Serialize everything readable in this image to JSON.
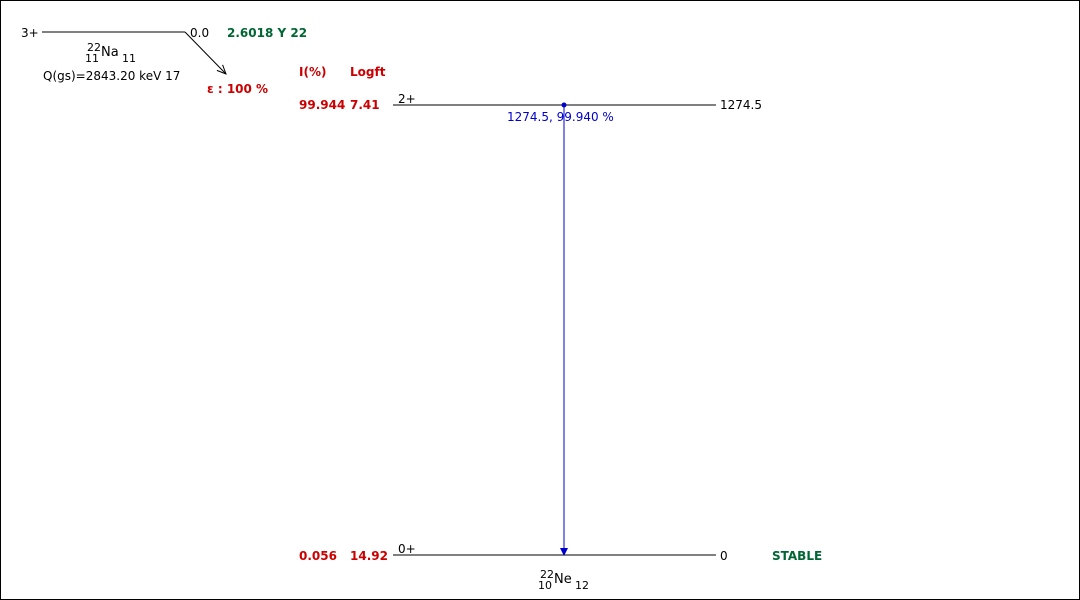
{
  "parent": {
    "spin": "3+",
    "energy": "0.0",
    "halflife": "2.6018 Y 22",
    "nuclide": {
      "mass": "22",
      "atomic": "11",
      "symbol": "Na",
      "neutrons": "11"
    },
    "qvalue": "Q(gs)=2843.20 keV 17",
    "decay_mode": "ε : 100 %"
  },
  "column_headers": {
    "intensity": "I(%)",
    "logft": "Logft"
  },
  "levels": [
    {
      "spin": "2+",
      "energy": "1274.5",
      "intensity": "99.944",
      "logft": "7.41"
    },
    {
      "spin": "0+",
      "energy": "0",
      "intensity": "0.056",
      "logft": "14.92",
      "status": "STABLE"
    }
  ],
  "gamma": {
    "label": "1274.5, 99.940 %"
  },
  "daughter": {
    "mass": "22",
    "atomic": "10",
    "symbol": "Ne",
    "neutrons": "12"
  },
  "colors": {
    "decay": "#cc0000",
    "halflife": "#006633",
    "gamma": "#0000cc",
    "level": "#000000"
  }
}
